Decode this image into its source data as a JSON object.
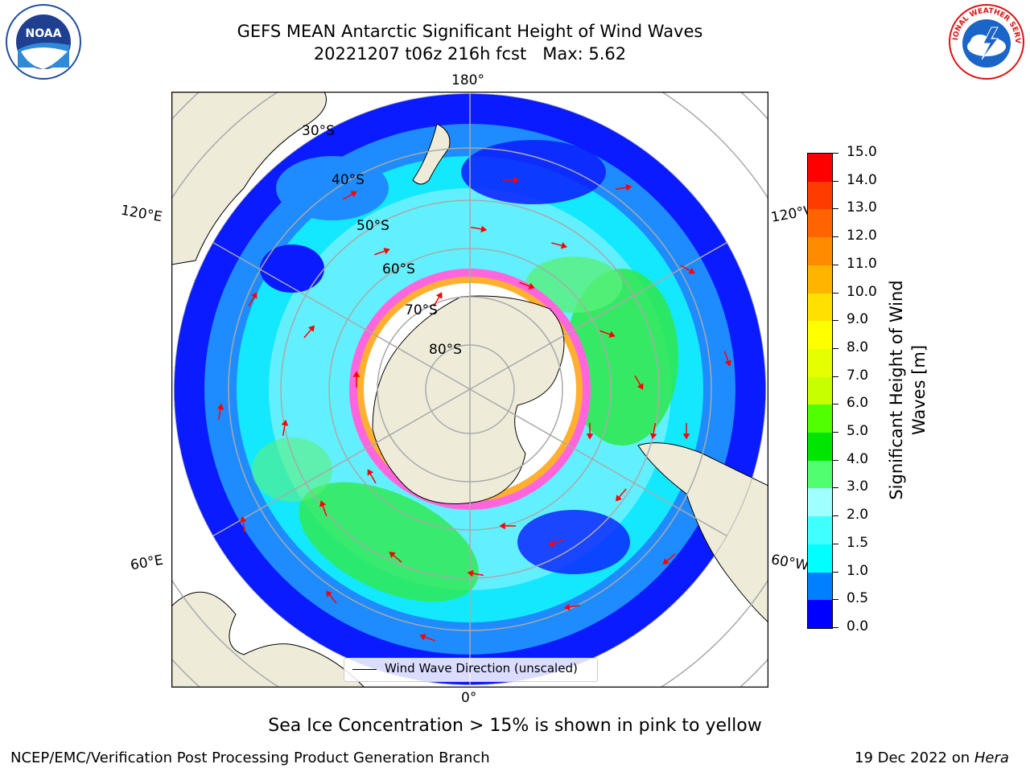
{
  "header": {
    "title_line1": "GEFS MEAN Antarctic Significant Height of Wind Waves",
    "title_line2": "20221207 t06z 216h fcst   Max: 5.62"
  },
  "logos": {
    "left_text": "NOAA",
    "right_text": "NATIONAL WEATHER SERVICE"
  },
  "map": {
    "longitude_labels": {
      "top": "180°",
      "bottom": "0°",
      "left_upper": "120°E",
      "left_lower": "60°E",
      "right_upper": "120°W",
      "right_lower": "60°W"
    },
    "latitude_labels": [
      "30°S",
      "40°S",
      "50°S",
      "60°S",
      "70°S",
      "80°S"
    ],
    "legend_label": "Wind Wave Direction (unscaled)",
    "arrow_color": "#ff0000"
  },
  "colorbar": {
    "label": "Significant Height of Wind Waves [m]",
    "ticks": [
      "0.0",
      "0.5",
      "1.0",
      "1.5",
      "2.0",
      "3.0",
      "4.0",
      "5.0",
      "6.0",
      "7.0",
      "8.0",
      "9.0",
      "10.0",
      "11.0",
      "12.0",
      "13.0",
      "14.0",
      "15.0"
    ],
    "colors": [
      "#0000ff",
      "#0080ff",
      "#00ffff",
      "#40ffff",
      "#a0ffff",
      "#50ff70",
      "#00e600",
      "#50ff00",
      "#c8ff00",
      "#e6ff00",
      "#ffff00",
      "#ffe000",
      "#ffb400",
      "#ff8c00",
      "#ff6400",
      "#ff3c00",
      "#ff0000"
    ]
  },
  "notes": {
    "sea_ice": "Sea Ice Concentration > 15% is shown in pink to yellow"
  },
  "footer": {
    "left": "NCEP/EMC/Verification Post Processing Product Generation Branch",
    "right_prefix": "19 Dec 2022 on ",
    "right_host": "Hera"
  }
}
